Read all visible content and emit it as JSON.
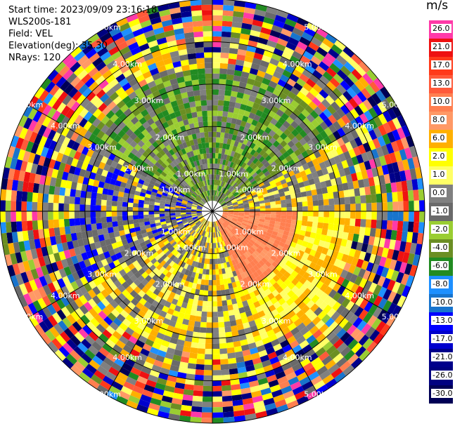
{
  "header": {
    "start_time": "Start time: 2023/09/09 23:16:18",
    "instrument": "WLS200s-181",
    "field": "Field: VEL",
    "elevation": "Elevation(deg): 35.30",
    "nrays": "NRays: 120"
  },
  "colorbar": {
    "unit": "m/s",
    "levels": [
      {
        "label": "26.0",
        "color": "#ff3aa8"
      },
      {
        "label": "21.0",
        "color": "#ee1111"
      },
      {
        "label": "17.0",
        "color": "#ff3a1a"
      },
      {
        "label": "13.0",
        "color": "#ff5a3a"
      },
      {
        "label": "10.0",
        "color": "#ff7f50"
      },
      {
        "label": "8.0",
        "color": "#ff9966"
      },
      {
        "label": "6.0",
        "color": "#ffb000"
      },
      {
        "label": "2.0",
        "color": "#ffff00"
      },
      {
        "label": "1.0",
        "color": "#ffff66"
      },
      {
        "label": "0.0",
        "color": "#808080"
      },
      {
        "label": "-1.0",
        "color": "#6a6a6a"
      },
      {
        "label": "-2.0",
        "color": "#9acd32"
      },
      {
        "label": "-4.0",
        "color": "#6b8e23"
      },
      {
        "label": "-6.0",
        "color": "#228b22"
      },
      {
        "label": "-8.0",
        "color": "#1e90ff"
      },
      {
        "label": "-10.0",
        "color": "#1874cd"
      },
      {
        "label": "-13.0",
        "color": "#0000ff"
      },
      {
        "label": "-17.0",
        "color": "#0000cd"
      },
      {
        "label": "-21.0",
        "color": "#00008b"
      },
      {
        "label": "-26.0",
        "color": "#000080"
      },
      {
        "label": "-30.0",
        "color": "#000055"
      }
    ]
  },
  "chart_data": {
    "type": "heatmap",
    "projection": "polar PPI",
    "field": "VEL",
    "units": "m/s",
    "n_rays": 120,
    "max_range_km": 5.0,
    "range_rings_km": [
      1.0,
      2.0,
      3.0,
      4.0,
      5.0
    ],
    "ring_labels": [
      "1.00km",
      "2.00km",
      "3.00km",
      "4.00km",
      "5.00km"
    ],
    "spoke_azimuths_deg": [
      0,
      30,
      60,
      90,
      120,
      150,
      180,
      210,
      240,
      270,
      300,
      330
    ],
    "velocity_range": [
      -30.0,
      26.0
    ]
  }
}
